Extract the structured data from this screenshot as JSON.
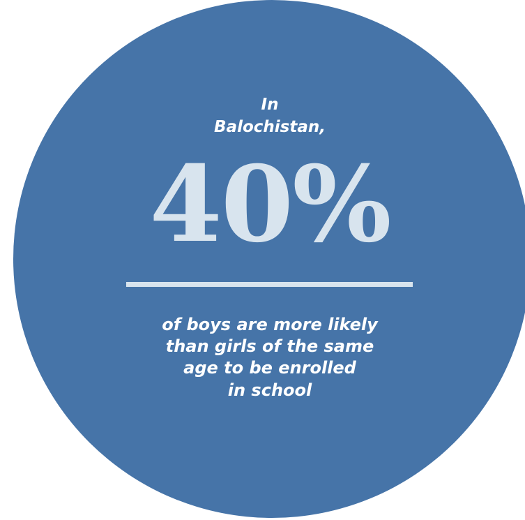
{
  "colors": {
    "circle": "#4674a8",
    "accent": "#d8e4ee",
    "text": "#ffffff"
  },
  "intro": {
    "lines": [
      "In",
      "Balochistan,"
    ]
  },
  "stat": {
    "value": "40%"
  },
  "description": {
    "lines": [
      "of boys are more likely",
      "than girls of the same",
      "age to be enrolled",
      "in school"
    ]
  }
}
